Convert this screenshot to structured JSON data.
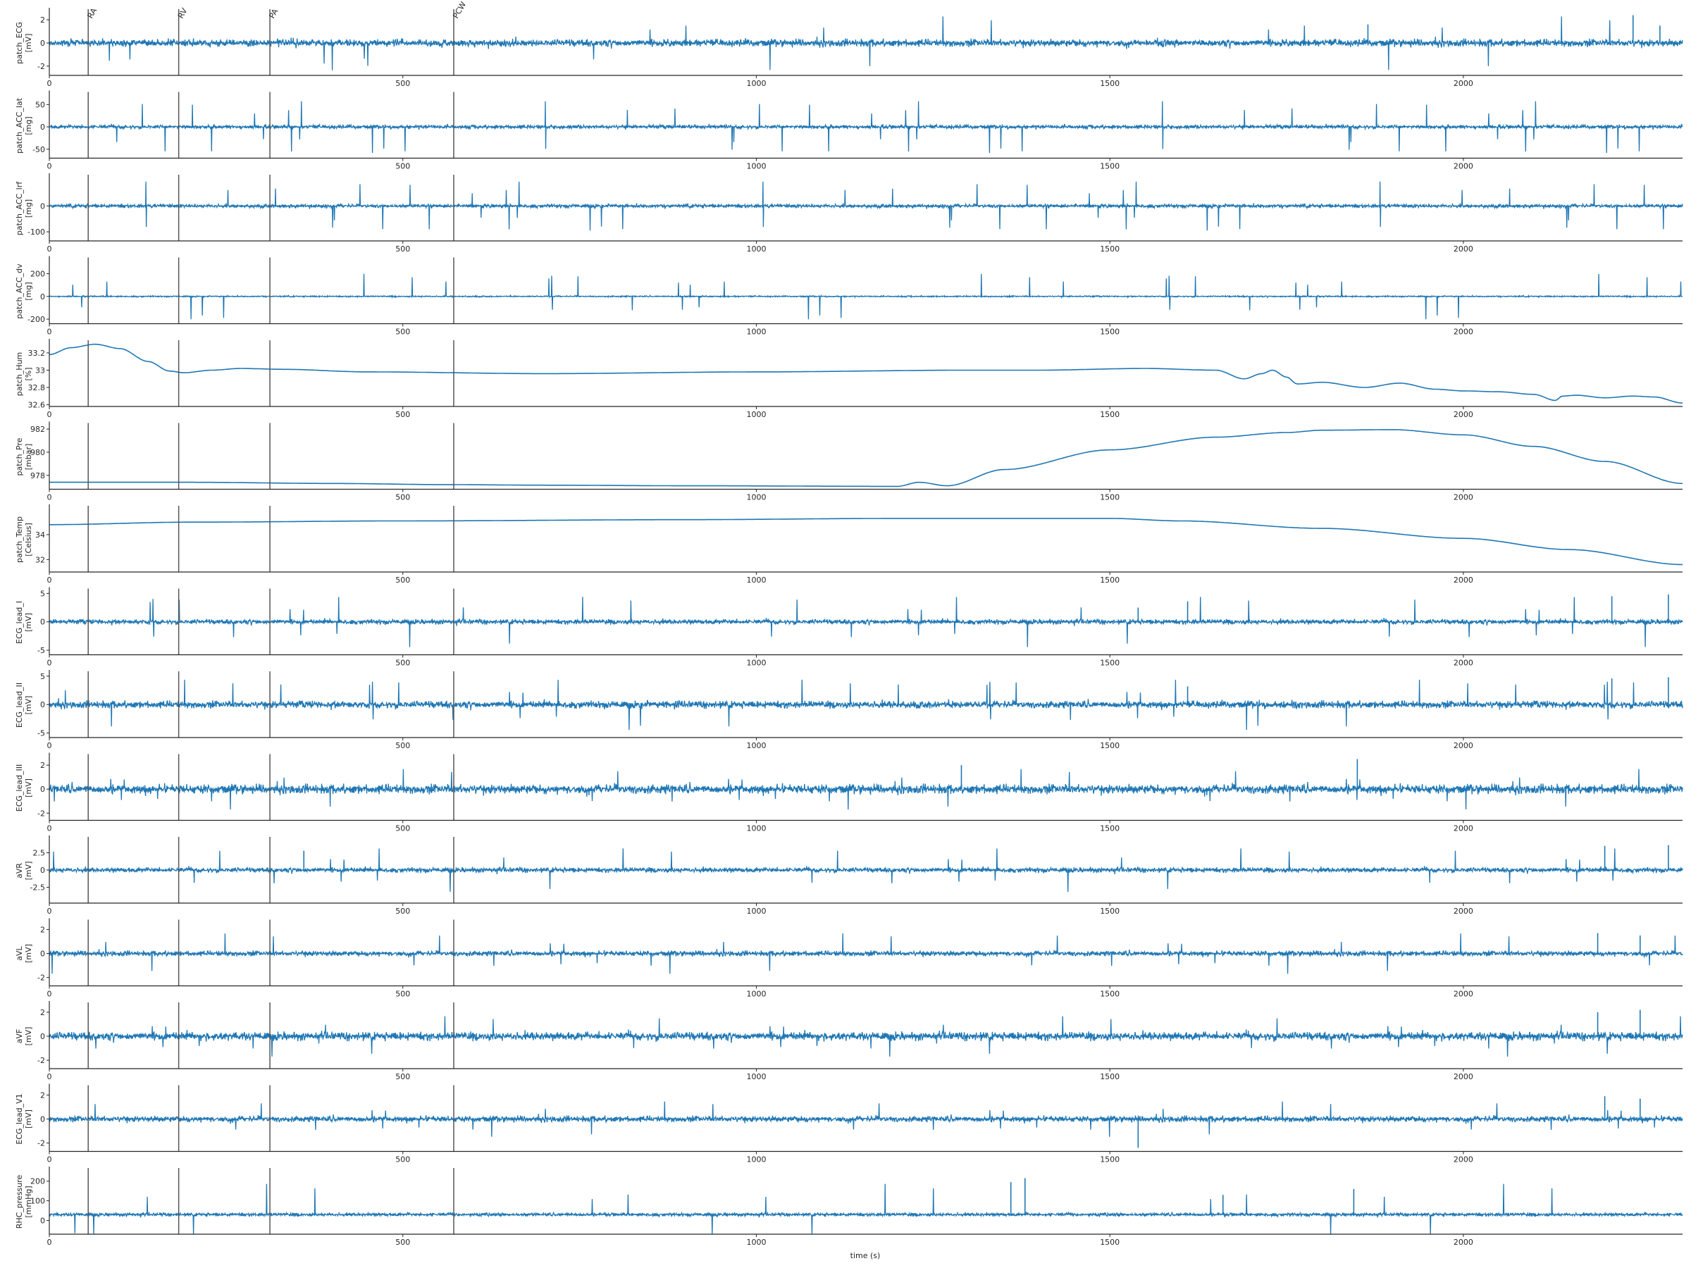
{
  "colors": {
    "line": "#1f77b4",
    "marker_line": "#555555",
    "axis": "#262626",
    "background": "#ffffff"
  },
  "chart_data": {
    "type": "line",
    "xlabel": "time (s)",
    "xlim": [
      0,
      2310
    ],
    "xticks": [
      0,
      500,
      1000,
      1500,
      2000
    ],
    "grid": false,
    "events": [
      {
        "label": "RA",
        "x": 55
      },
      {
        "label": "RV",
        "x": 183
      },
      {
        "label": "PA",
        "x": 312
      },
      {
        "label": "PCW",
        "x": 572
      }
    ],
    "panels": [
      {
        "ylabel": [
          "patch_ECG",
          "[mV]"
        ],
        "ylim": [
          -2.8,
          2.8
        ],
        "yticks": [
          -2,
          0,
          2
        ],
        "kind": "noise",
        "base": 0.0,
        "amp": 0.45,
        "spike": 2.2,
        "spike_prob": 0.004,
        "peaks": [
          [
            1865,
            1.6
          ],
          [
            2240,
            2.4
          ],
          [
            2278,
            1.5
          ]
        ]
      },
      {
        "ylabel": [
          "patch_ACC_lat",
          "[mg]"
        ],
        "ylim": [
          -70,
          75
        ],
        "yticks": [
          -50,
          0,
          50
        ],
        "kind": "noise",
        "base": 0.0,
        "amp": 6,
        "spike": 55,
        "spike_prob": 0.012,
        "peaks": []
      },
      {
        "ylabel": [
          "patch_ACC_lrf",
          "[mg]"
        ],
        "ylim": [
          -135,
          115
        ],
        "yticks": [
          -100,
          0
        ],
        "kind": "noise",
        "base": 0.0,
        "amp": 10,
        "spike": 90,
        "spike_prob": 0.012,
        "peaks": []
      },
      {
        "ylabel": [
          "patch_ACC_dv",
          "[mg]"
        ],
        "ylim": [
          -240,
          330
        ],
        "yticks": [
          -200,
          0,
          200
        ],
        "kind": "noise",
        "base": 0.0,
        "amp": 8,
        "spike": 190,
        "spike_prob": 0.01,
        "peaks": []
      },
      {
        "ylabel": [
          "patch_Hum",
          "[%]"
        ],
        "ylim": [
          32.58,
          33.33
        ],
        "yticks": [
          32.6,
          32.8,
          33.0,
          33.2
        ],
        "kind": "curve",
        "points": [
          [
            0,
            33.18
          ],
          [
            30,
            33.26
          ],
          [
            65,
            33.3
          ],
          [
            100,
            33.25
          ],
          [
            140,
            33.1
          ],
          [
            170,
            32.99
          ],
          [
            190,
            32.97
          ],
          [
            230,
            33.0
          ],
          [
            270,
            33.02
          ],
          [
            330,
            33.01
          ],
          [
            450,
            32.98
          ],
          [
            700,
            32.96
          ],
          [
            1000,
            32.98
          ],
          [
            1300,
            33.0
          ],
          [
            1400,
            33.0
          ],
          [
            1550,
            33.02
          ],
          [
            1650,
            33.0
          ],
          [
            1690,
            32.9
          ],
          [
            1715,
            32.96
          ],
          [
            1730,
            33.0
          ],
          [
            1750,
            32.92
          ],
          [
            1765,
            32.84
          ],
          [
            1800,
            32.86
          ],
          [
            1860,
            32.8
          ],
          [
            1910,
            32.85
          ],
          [
            1960,
            32.78
          ],
          [
            2000,
            32.76
          ],
          [
            2050,
            32.75
          ],
          [
            2100,
            32.72
          ],
          [
            2130,
            32.65
          ],
          [
            2140,
            32.7
          ],
          [
            2160,
            32.71
          ],
          [
            2200,
            32.68
          ],
          [
            2240,
            32.7
          ],
          [
            2270,
            32.69
          ],
          [
            2310,
            32.62
          ]
        ]
      },
      {
        "ylabel": [
          "patch_Pre",
          "[mbar]"
        ],
        "ylim": [
          976.8,
          982.4
        ],
        "yticks": [
          978,
          980,
          982
        ],
        "kind": "curve",
        "points": [
          [
            0,
            977.4
          ],
          [
            200,
            977.4
          ],
          [
            400,
            977.3
          ],
          [
            560,
            977.2
          ],
          [
            700,
            977.15
          ],
          [
            900,
            977.1
          ],
          [
            1200,
            977.05
          ],
          [
            1230,
            977.4
          ],
          [
            1270,
            977.1
          ],
          [
            1350,
            978.5
          ],
          [
            1500,
            980.2
          ],
          [
            1650,
            981.3
          ],
          [
            1750,
            981.7
          ],
          [
            1800,
            981.9
          ],
          [
            1900,
            981.95
          ],
          [
            2000,
            981.5
          ],
          [
            2100,
            980.5
          ],
          [
            2200,
            979.2
          ],
          [
            2310,
            977.3
          ]
        ]
      },
      {
        "ylabel": [
          "patch_Temp",
          "[Celsius]"
        ],
        "ylim": [
          31.0,
          36.2
        ],
        "yticks": [
          32,
          34
        ],
        "kind": "curve",
        "points": [
          [
            0,
            34.8
          ],
          [
            200,
            35.0
          ],
          [
            500,
            35.1
          ],
          [
            900,
            35.2
          ],
          [
            1200,
            35.3
          ],
          [
            1500,
            35.3
          ],
          [
            1600,
            35.1
          ],
          [
            1800,
            34.5
          ],
          [
            2000,
            33.7
          ],
          [
            2150,
            32.8
          ],
          [
            2310,
            31.6
          ]
        ]
      },
      {
        "ylabel": [
          "ECG_lead_I",
          "[mV]"
        ],
        "ylim": [
          -5.8,
          5.6
        ],
        "yticks": [
          -5,
          0,
          5
        ],
        "kind": "noise",
        "base": 0.0,
        "amp": 0.6,
        "spike": 4.2,
        "spike_prob": 0.006,
        "peaks": [
          [
            1540,
            2.5
          ],
          [
            1610,
            3.6
          ],
          [
            2210,
            4.5
          ],
          [
            2290,
            4.8
          ]
        ]
      },
      {
        "ylabel": [
          "ECG_lead_II",
          "[mV]"
        ],
        "ylim": [
          -5.8,
          5.6
        ],
        "yticks": [
          -5,
          0,
          5
        ],
        "kind": "noise",
        "base": 0.0,
        "amp": 0.9,
        "spike": 4.2,
        "spike_prob": 0.007,
        "peaks": [
          [
            1610,
            3.2
          ],
          [
            2210,
            4.6
          ],
          [
            2290,
            4.8
          ]
        ]
      },
      {
        "ylabel": [
          "ECG_lead_III",
          "[mV]"
        ],
        "ylim": [
          -2.6,
          2.8
        ],
        "yticks": [
          -2,
          0,
          2
        ],
        "kind": "noise",
        "base": 0.0,
        "amp": 0.55,
        "spike": 1.6,
        "spike_prob": 0.005,
        "peaks": [
          [
            1290,
            2.0
          ],
          [
            1850,
            2.5
          ]
        ]
      },
      {
        "ylabel": [
          "aVR",
          "[mV]"
        ],
        "ylim": [
          -4.8,
          4.6
        ],
        "yticks": [
          -2.5,
          0.0,
          2.5
        ],
        "kind": "noise",
        "base": 0.0,
        "amp": 0.5,
        "spike": 3.0,
        "spike_prob": 0.006,
        "peaks": [
          [
            360,
            2.8
          ],
          [
            2200,
            3.5
          ],
          [
            2290,
            3.6
          ]
        ]
      },
      {
        "ylabel": [
          "aVL",
          "[mV]"
        ],
        "ylim": [
          -2.7,
          2.7
        ],
        "yticks": [
          -2,
          0,
          2
        ],
        "kind": "noise",
        "base": 0.0,
        "amp": 0.3,
        "spike": 1.6,
        "spike_prob": 0.005,
        "peaks": [
          [
            2190,
            1.7
          ],
          [
            2250,
            1.5
          ]
        ]
      },
      {
        "ylabel": [
          "aVF",
          "[mV]"
        ],
        "ylim": [
          -2.7,
          2.7
        ],
        "yticks": [
          -2,
          0,
          2
        ],
        "kind": "noise",
        "base": 0.0,
        "amp": 0.5,
        "spike": 1.6,
        "spike_prob": 0.005,
        "peaks": [
          [
            2190,
            2.0
          ],
          [
            2250,
            2.2
          ]
        ]
      },
      {
        "ylabel": [
          "ECG_lead_V1",
          "[mV]"
        ],
        "ylim": [
          -2.7,
          2.7
        ],
        "yticks": [
          -2,
          0,
          2
        ],
        "kind": "noise",
        "base": 0.0,
        "amp": 0.35,
        "spike": 1.4,
        "spike_prob": 0.005,
        "peaks": [
          [
            1540,
            -2.4
          ],
          [
            2200,
            1.9
          ],
          [
            2250,
            1.7
          ]
        ]
      },
      {
        "ylabel": [
          "RHC_pressure",
          "[mmHg]"
        ],
        "ylim": [
          -70,
          260
        ],
        "yticks": [
          0,
          100,
          200
        ],
        "kind": "noise",
        "base": 30,
        "amp": 12,
        "spike": 150,
        "spike_prob": 0.004,
        "peaks": [
          [
            1380,
            215
          ],
          [
            1360,
            195
          ],
          [
            1845,
            160
          ],
          [
            1660,
            130
          ]
        ]
      }
    ]
  }
}
